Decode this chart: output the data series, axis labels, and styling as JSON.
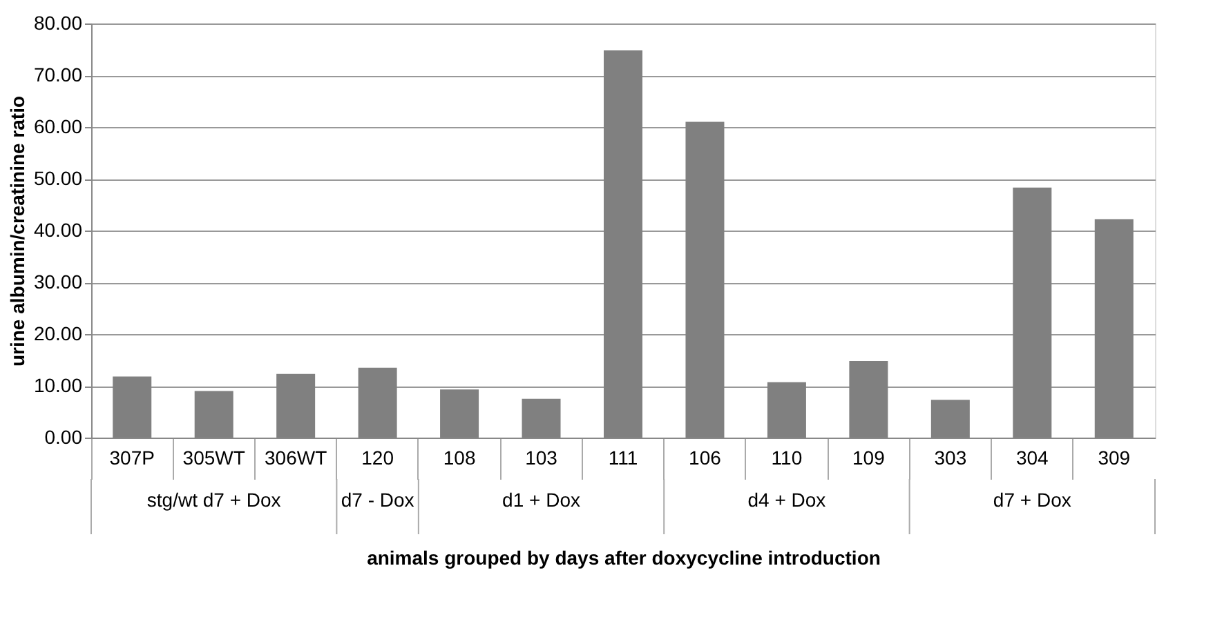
{
  "chart_data": {
    "type": "bar",
    "xlabel": "animals grouped by days after doxycycline introduction",
    "ylabel": "urine albumin/creatinine ratio",
    "categories": [
      "307P",
      "305WT",
      "306WT",
      "120",
      "108",
      "103",
      "111",
      "106",
      "110",
      "109",
      "303",
      "304",
      "309"
    ],
    "values": [
      11.8,
      9.0,
      12.3,
      13.5,
      9.3,
      7.5,
      74.8,
      61.0,
      10.7,
      14.8,
      7.3,
      48.3,
      42.2
    ],
    "color": "#808080",
    "ylim": [
      0,
      80
    ],
    "yticks": [
      {
        "value": 0,
        "label": "0.00"
      },
      {
        "value": 10,
        "label": "10.00"
      },
      {
        "value": 20,
        "label": "20.00"
      },
      {
        "value": 30,
        "label": "30.00"
      },
      {
        "value": 40,
        "label": "40.00"
      },
      {
        "value": 50,
        "label": "50.00"
      },
      {
        "value": 60,
        "label": "60.00"
      },
      {
        "value": 70,
        "label": "70.00"
      },
      {
        "value": 80,
        "label": "80.00"
      }
    ],
    "grid": "y",
    "annotations": [
      "stg/wt d7 + Dox",
      "d7 - Dox",
      "d1 + Dox",
      "d4 + Dox",
      "d7 + Dox"
    ]
  }
}
